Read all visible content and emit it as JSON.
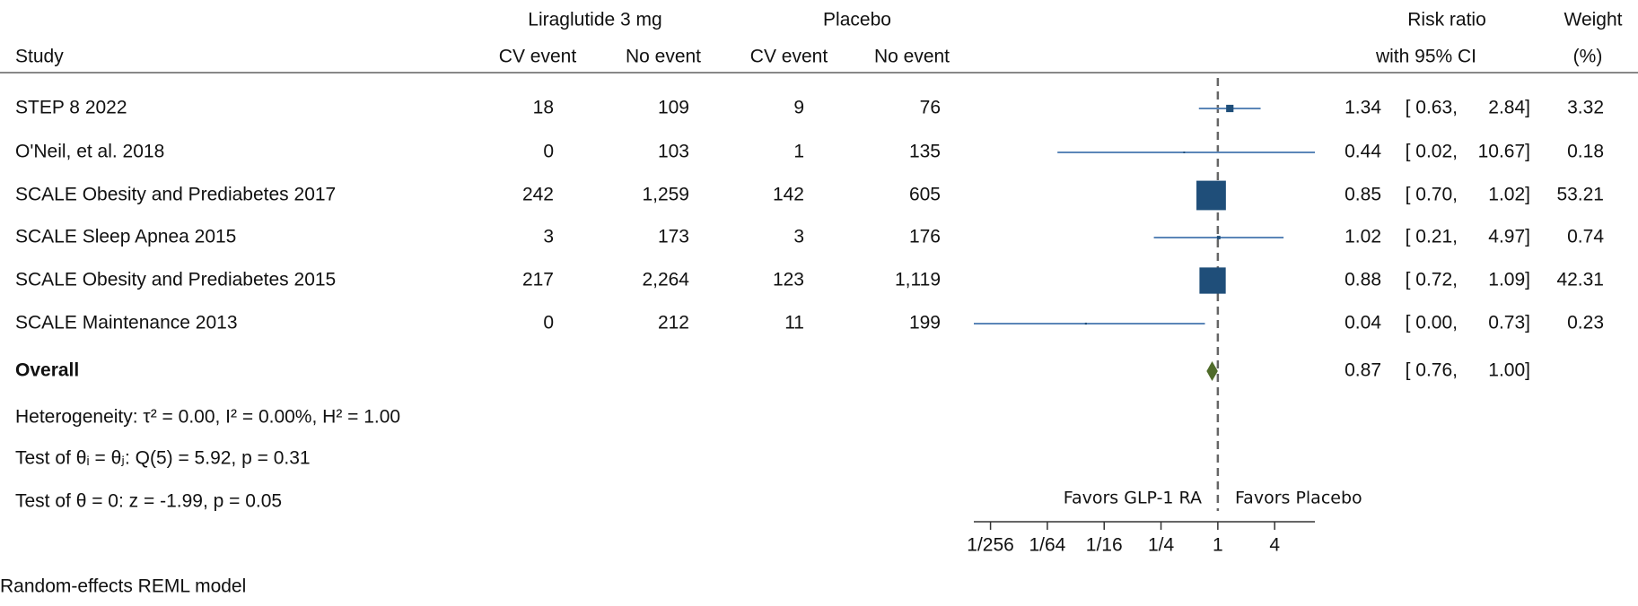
{
  "chart_data": {
    "type": "forest",
    "group_headers": [
      "Liraglutide 3 mg",
      "Placebo"
    ],
    "column_headers": [
      "Study",
      "CV event",
      "No event",
      "CV event",
      "No event"
    ],
    "effect_header": [
      "Risk ratio",
      "with 95% CI"
    ],
    "weight_header": [
      "Weight",
      "(%)"
    ],
    "studies": [
      "STEP 8 2022",
      "O'Neil, et al. 2018",
      "SCALE Obesity and Prediabetes 2017",
      "SCALE Sleep Apnea 2015",
      "SCALE Obesity and Prediabetes 2015",
      "SCALE Maintenance 2013"
    ],
    "counts": [
      [
        18,
        0,
        242,
        3,
        217,
        0
      ],
      [
        109,
        103,
        {
          "value": 1259,
          "label": "1,259"
        },
        173,
        {
          "value": 2264,
          "label": "2,264"
        },
        212
      ],
      [
        9,
        1,
        142,
        3,
        123,
        11
      ],
      [
        76,
        135,
        605,
        176,
        {
          "value": 1119,
          "label": "1,119"
        },
        199
      ]
    ],
    "estimate": {
      "values": [
        1.34,
        0.44,
        0.85,
        1.02,
        0.88,
        0.04
      ],
      "value_labels": [
        "1.34",
        "0.44",
        "0.85",
        "1.02",
        "0.88",
        "0.04"
      ]
    },
    "lower": {
      "values": [
        0.63,
        0.02,
        0.7,
        0.21,
        0.72,
        0
      ],
      "value_labels": [
        "[ 0.63,",
        "[ 0.02,",
        "[ 0.70,",
        "[ 0.21,",
        "[ 0.72,",
        "[ 0.00,"
      ]
    },
    "upper": {
      "values": [
        2.84,
        10.67,
        1.02,
        4.97,
        1.09,
        0.73
      ],
      "value_labels": [
        "2.84]",
        "10.67]",
        "1.02]",
        "4.97]",
        "1.09]",
        "0.73]"
      ]
    },
    "weights": [
      3.32,
      0.18,
      53.21,
      0.74,
      42.31,
      0.23
    ],
    "overall": {
      "label": "Overall",
      "estimate": 0.87,
      "lower": 0.76,
      "upper": 1,
      "labels": [
        "0.87",
        "[ 0.76,",
        "1.00]"
      ]
    },
    "notes": [
      "Heterogeneity: τ² = 0.00, I² = 0.00%, H² = 1.00",
      "Test of θᵢ = θⱼ: Q(5) = 5.92, p = 0.31",
      "Test of θ = 0: z = -1.99, p = 0.05"
    ],
    "annotations": [
      "Favors GLP-1 RA",
      "Favors Placebo"
    ],
    "footer": "Random-effects REML model",
    "x_scale": "log",
    "xlim": [
      0.0026,
      10.67
    ],
    "xticks": [
      {
        "value": 0.00390625,
        "label": "1/256"
      },
      {
        "value": 0.015625,
        "label": "1/64"
      },
      {
        "value": 0.0625,
        "label": "1/16"
      },
      {
        "value": 0.25,
        "label": "1/4"
      },
      1,
      4
    ],
    "reference_line": 1,
    "marker_color": "#1f4e79",
    "ci_color": "#5b86b8",
    "overall_color": "#4f6b2a"
  }
}
